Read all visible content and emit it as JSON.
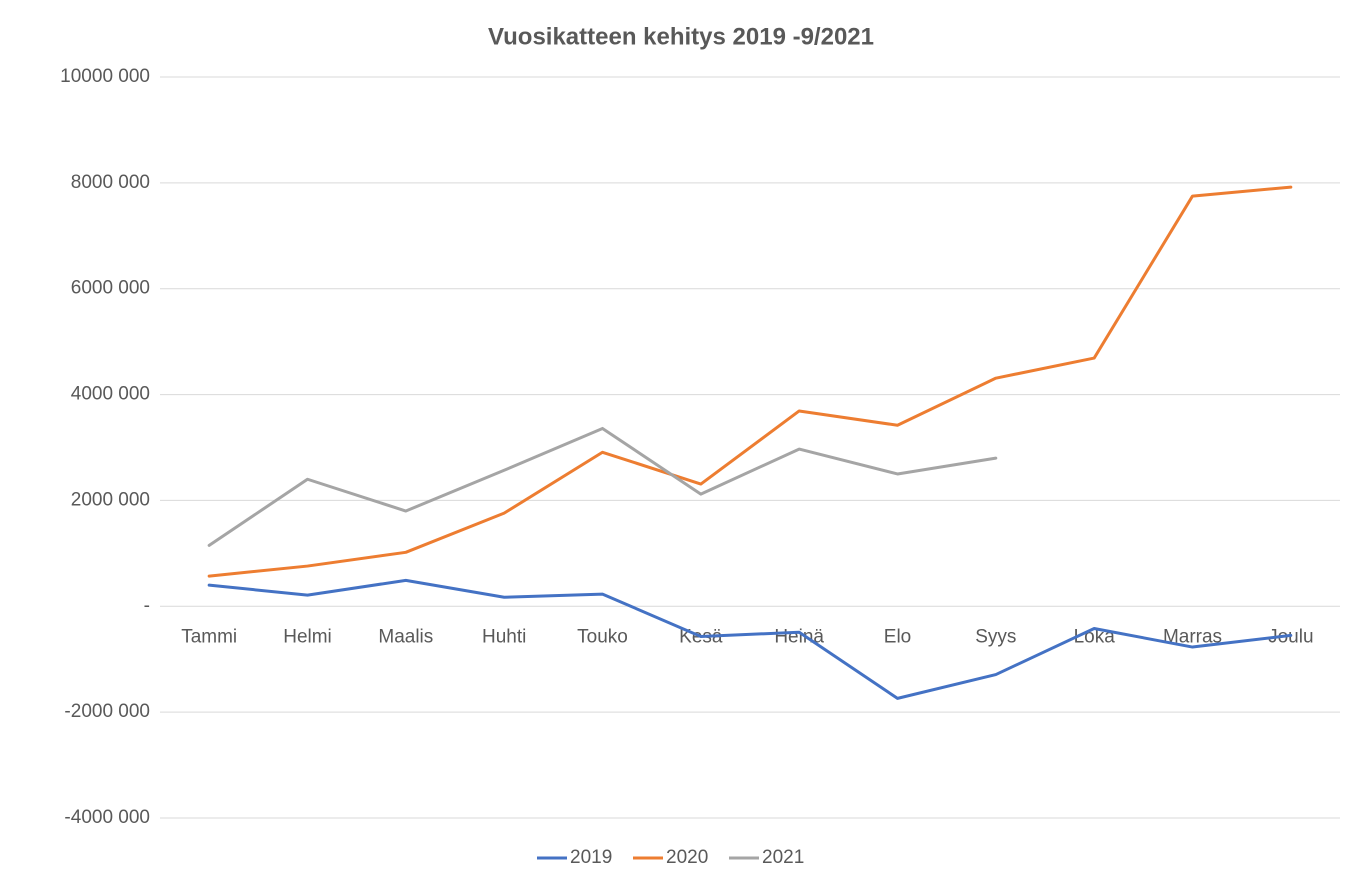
{
  "chart_data": {
    "type": "line",
    "title": "Vuosikatteen kehitys 2019 -9/2021",
    "categories": [
      "Tammi",
      "Helmi",
      "Maalis",
      "Huhti",
      "Touko",
      "Kesä",
      "Heinä",
      "Elo",
      "Syys",
      "Loka",
      "Marras",
      "Joulu"
    ],
    "series": [
      {
        "name": "2019",
        "color": "#4472c4",
        "values": [
          400000,
          210000,
          490000,
          170000,
          230000,
          -570000,
          -490000,
          -1740000,
          -1290000,
          -420000,
          -770000,
          -550000
        ]
      },
      {
        "name": "2020",
        "color": "#ed7d31",
        "values": [
          570000,
          760000,
          1020000,
          1760000,
          2910000,
          2310000,
          3690000,
          3420000,
          4310000,
          4690000,
          7750000,
          7920000
        ]
      },
      {
        "name": "2021",
        "color": "#a5a5a5",
        "values": [
          1150000,
          2400000,
          1800000,
          2570000,
          3360000,
          2120000,
          2970000,
          2500000,
          2800000,
          null,
          null,
          null
        ]
      }
    ],
    "ylim": [
      -4000000,
      10000000
    ],
    "yticks": [
      {
        "value": -4000000,
        "label": "-4000 000"
      },
      {
        "value": -2000000,
        "label": "-2000 000"
      },
      {
        "value": 0,
        "label": "-"
      },
      {
        "value": 2000000,
        "label": "2000 000"
      },
      {
        "value": 4000000,
        "label": "4000 000"
      },
      {
        "value": 6000000,
        "label": "6000 000"
      },
      {
        "value": 8000000,
        "label": "8000 000"
      },
      {
        "value": 10000000,
        "label": "10000 000"
      }
    ],
    "grid": true,
    "legend": "bottom"
  }
}
